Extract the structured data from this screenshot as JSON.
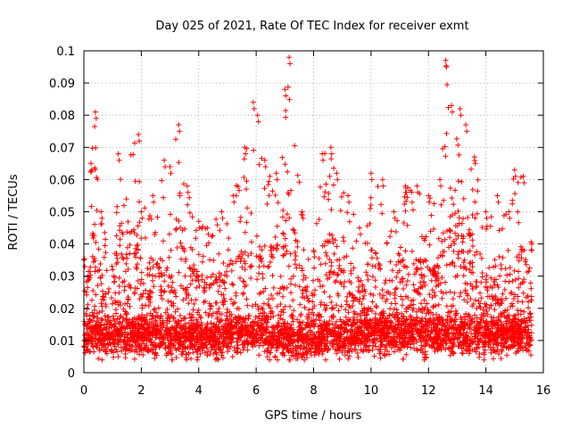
{
  "chart_data": {
    "type": "scatter",
    "title": "Day 025 of 2021, Rate Of TEC Index for receiver exmt",
    "xlabel": "GPS time / hours",
    "ylabel": "ROTI / TECUs",
    "xlim": [
      0,
      16
    ],
    "ylim": [
      0,
      0.1
    ],
    "x_ticks": [
      "0",
      "2",
      "4",
      "6",
      "8",
      "10",
      "12",
      "14",
      "16"
    ],
    "y_ticks": [
      "0",
      "0.01",
      "0.02",
      "0.03",
      "0.04",
      "0.05",
      "0.06",
      "0.07",
      "0.08",
      "0.09",
      "0.1"
    ],
    "grid": true,
    "marker": "+",
    "color": "#ff0000",
    "x_coverage": [
      0.0,
      15.6
    ],
    "envelope": {
      "x": [
        0.0,
        0.25,
        0.4,
        0.6,
        1.0,
        1.2,
        1.9,
        2.0,
        2.4,
        2.8,
        3.0,
        3.3,
        3.6,
        4.0,
        4.3,
        4.8,
        5.2,
        5.6,
        5.9,
        6.05,
        6.3,
        6.7,
        7.0,
        7.15,
        7.6,
        8.0,
        8.3,
        8.6,
        8.8,
        9.2,
        9.6,
        10.0,
        10.4,
        10.8,
        11.2,
        11.6,
        12.0,
        12.4,
        12.6,
        12.8,
        13.1,
        13.3,
        13.6,
        14.0,
        14.4,
        14.8,
        15.0,
        15.3,
        15.6
      ],
      "max": [
        0.035,
        0.065,
        0.081,
        0.05,
        0.032,
        0.068,
        0.074,
        0.05,
        0.055,
        0.066,
        0.064,
        0.077,
        0.058,
        0.047,
        0.045,
        0.05,
        0.055,
        0.07,
        0.084,
        0.08,
        0.066,
        0.062,
        0.088,
        0.098,
        0.05,
        0.038,
        0.068,
        0.07,
        0.062,
        0.055,
        0.045,
        0.062,
        0.06,
        0.05,
        0.058,
        0.058,
        0.055,
        0.06,
        0.097,
        0.083,
        0.082,
        0.077,
        0.067,
        0.05,
        0.055,
        0.05,
        0.063,
        0.061,
        0.04
      ],
      "base": [
        0.012,
        0.012,
        0.013,
        0.011,
        0.011,
        0.012,
        0.011,
        0.011,
        0.011,
        0.012,
        0.011,
        0.011,
        0.011,
        0.011,
        0.011,
        0.011,
        0.012,
        0.012,
        0.012,
        0.012,
        0.012,
        0.011,
        0.011,
        0.01,
        0.01,
        0.01,
        0.011,
        0.012,
        0.011,
        0.011,
        0.012,
        0.012,
        0.012,
        0.012,
        0.012,
        0.012,
        0.012,
        0.012,
        0.012,
        0.012,
        0.012,
        0.012,
        0.012,
        0.011,
        0.011,
        0.012,
        0.012,
        0.012,
        0.012
      ],
      "min": 0.004
    }
  }
}
